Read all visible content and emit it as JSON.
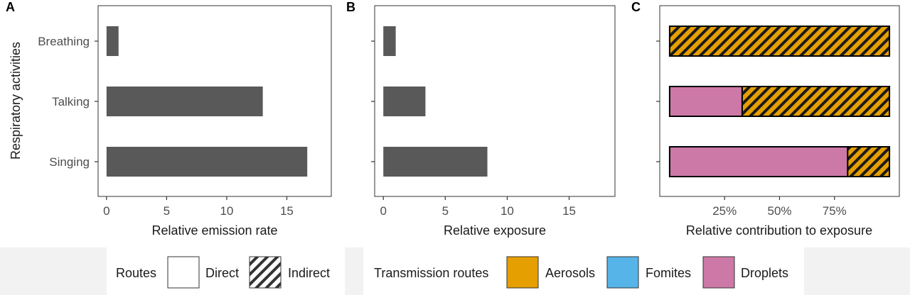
{
  "chart_data": [
    {
      "panel_tag": "A",
      "type": "bar",
      "orientation": "horizontal",
      "categories": [
        "Breathing",
        "Talking",
        "Singing"
      ],
      "values": [
        1,
        13,
        16.7
      ],
      "xlabel": "Relative emission rate",
      "ylabel": "Respiratory activities",
      "xlim": [
        -0.7,
        18.7
      ],
      "xticks": [
        0,
        5,
        10,
        15
      ],
      "bar_color": "#595959",
      "grid": false
    },
    {
      "panel_tag": "B",
      "type": "bar",
      "orientation": "horizontal",
      "categories": [
        "Breathing",
        "Talking",
        "Singing"
      ],
      "values": [
        1,
        3.4,
        8.4
      ],
      "xlabel": "Relative exposure",
      "xlim": [
        -0.7,
        18.7
      ],
      "xticks": [
        0,
        5,
        10,
        15
      ],
      "bar_color": "#595959",
      "grid": false
    },
    {
      "panel_tag": "C",
      "type": "bar",
      "orientation": "horizontal",
      "stacked": true,
      "categories": [
        "Breathing",
        "Talking",
        "Singing"
      ],
      "series": [
        {
          "name": "Droplets",
          "route": "Direct",
          "values": [
            0,
            0.33,
            0.81
          ]
        },
        {
          "name": "Aerosols",
          "route": "Indirect",
          "values": [
            1,
            0.67,
            0.19
          ]
        }
      ],
      "xlabel": "Relative contribution to exposure",
      "xlim": [
        -0.045,
        1.045
      ],
      "xticks": [
        0.25,
        0.5,
        0.75
      ],
      "xticklabels": [
        "25%",
        "50%",
        "75%"
      ],
      "grid": false
    }
  ],
  "legend": {
    "routes": {
      "title": "Routes",
      "items": [
        {
          "label": "Direct",
          "pattern": "solid"
        },
        {
          "label": "Indirect",
          "pattern": "hatched"
        }
      ]
    },
    "transmission": {
      "title": "Transmission routes",
      "items": [
        {
          "label": "Aerosols",
          "color": "#E69F00"
        },
        {
          "label": "Fomites",
          "color": "#56B4E9"
        },
        {
          "label": "Droplets",
          "color": "#CC79A7"
        }
      ]
    }
  }
}
